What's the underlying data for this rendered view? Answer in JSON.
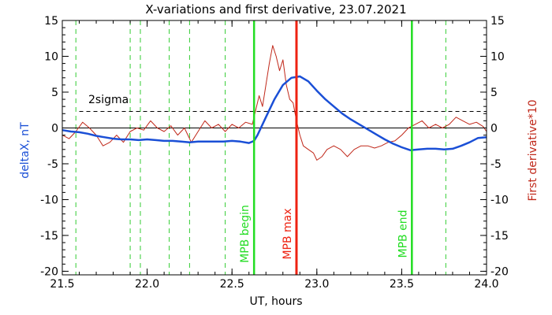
{
  "chart_data": {
    "type": "line",
    "title": "X-variations and first derivative, 23.07.2021",
    "xlabel": "UT, hours",
    "ylabel_left": "deltaX, nT",
    "ylabel_right": "First derivative*10",
    "xlim": [
      21.5,
      24.0
    ],
    "ylim": [
      -20.5,
      15
    ],
    "x_ticks": [
      21.5,
      22.0,
      22.5,
      23.0,
      23.5,
      24.0
    ],
    "x_tick_labels": [
      "21.5",
      "22.0",
      "22.5",
      "23.0",
      "23.5",
      "24.0"
    ],
    "y_ticks": [
      -20,
      -15,
      -10,
      -5,
      0,
      5,
      10,
      15
    ],
    "y_tick_labels": [
      "-20",
      "-15",
      "-10",
      "-5",
      "0",
      "5",
      "10",
      "15"
    ],
    "colors": {
      "deltaX": "#1a4fd6",
      "derivative": "#c0281a",
      "mpb_boundary": "#22dd22",
      "mpb_max": "#ee2211",
      "dashed_minor": "#33cc33"
    },
    "sigma": {
      "label": "2sigma",
      "y": 2.3
    },
    "dashed_verticals": [
      21.58,
      21.9,
      21.96,
      22.13,
      22.25,
      22.46,
      23.76
    ],
    "vertical_markers": [
      {
        "x": 22.63,
        "label": "MPB begin",
        "kind": "boundary"
      },
      {
        "x": 22.88,
        "label": "MPB max",
        "kind": "max"
      },
      {
        "x": 23.56,
        "label": "MPB end",
        "kind": "boundary"
      }
    ],
    "series": [
      {
        "key": "deltaX",
        "x": [
          21.5,
          21.55,
          21.6,
          21.65,
          21.7,
          21.75,
          21.8,
          21.85,
          21.9,
          21.95,
          22.0,
          22.05,
          22.1,
          22.15,
          22.2,
          22.25,
          22.3,
          22.35,
          22.4,
          22.45,
          22.5,
          22.55,
          22.6,
          22.63,
          22.65,
          22.7,
          22.75,
          22.8,
          22.85,
          22.9,
          22.95,
          23.0,
          23.05,
          23.1,
          23.15,
          23.2,
          23.25,
          23.3,
          23.35,
          23.4,
          23.45,
          23.5,
          23.55,
          23.6,
          23.65,
          23.7,
          23.75,
          23.8,
          23.85,
          23.9,
          23.95,
          24.0
        ],
        "y": [
          -0.3,
          -0.5,
          -0.6,
          -0.8,
          -1.1,
          -1.3,
          -1.5,
          -1.6,
          -1.6,
          -1.7,
          -1.6,
          -1.7,
          -1.8,
          -1.8,
          -1.9,
          -2.0,
          -1.9,
          -1.9,
          -1.9,
          -1.9,
          -1.8,
          -1.9,
          -2.1,
          -1.8,
          -1.0,
          1.5,
          4.0,
          6.0,
          7.0,
          7.2,
          6.5,
          5.2,
          4.0,
          3.0,
          2.0,
          1.2,
          0.5,
          -0.2,
          -0.9,
          -1.6,
          -2.2,
          -2.7,
          -3.1,
          -3.0,
          -2.9,
          -2.9,
          -3.0,
          -2.9,
          -2.5,
          -2.0,
          -1.4,
          -1.3
        ]
      },
      {
        "key": "derivative",
        "x": [
          21.5,
          21.54,
          21.58,
          21.62,
          21.66,
          21.7,
          21.74,
          21.78,
          21.82,
          21.86,
          21.9,
          21.94,
          21.98,
          22.02,
          22.06,
          22.1,
          22.14,
          22.18,
          22.22,
          22.26,
          22.3,
          22.34,
          22.38,
          22.42,
          22.46,
          22.5,
          22.54,
          22.58,
          22.62,
          22.64,
          22.66,
          22.68,
          22.7,
          22.72,
          22.74,
          22.76,
          22.78,
          22.8,
          22.82,
          22.84,
          22.86,
          22.88,
          22.9,
          22.92,
          22.95,
          22.98,
          23.0,
          23.03,
          23.06,
          23.1,
          23.14,
          23.18,
          23.22,
          23.26,
          23.3,
          23.34,
          23.38,
          23.42,
          23.46,
          23.5,
          23.54,
          23.58,
          23.62,
          23.66,
          23.7,
          23.74,
          23.78,
          23.82,
          23.86,
          23.9,
          23.94,
          23.98,
          24.0
        ],
        "y": [
          -1.0,
          -1.5,
          -0.5,
          0.8,
          0.0,
          -1.0,
          -2.5,
          -2.0,
          -1.0,
          -2.0,
          -0.5,
          0.0,
          -0.3,
          1.0,
          0.0,
          -0.5,
          0.3,
          -1.0,
          0.0,
          -2.0,
          -0.5,
          1.0,
          0.0,
          0.5,
          -0.5,
          0.5,
          0.0,
          0.8,
          0.5,
          2.5,
          4.5,
          3.0,
          6.0,
          9.0,
          11.5,
          10.0,
          8.0,
          9.5,
          6.0,
          4.0,
          3.5,
          1.0,
          -1.0,
          -2.5,
          -3.0,
          -3.5,
          -4.5,
          -4.0,
          -3.0,
          -2.5,
          -3.0,
          -4.0,
          -3.0,
          -2.5,
          -2.5,
          -2.8,
          -2.5,
          -2.0,
          -1.8,
          -1.0,
          0.0,
          0.5,
          1.0,
          0.0,
          0.5,
          0.0,
          0.5,
          1.5,
          1.0,
          0.5,
          0.8,
          0.2,
          -0.5
        ]
      }
    ]
  }
}
